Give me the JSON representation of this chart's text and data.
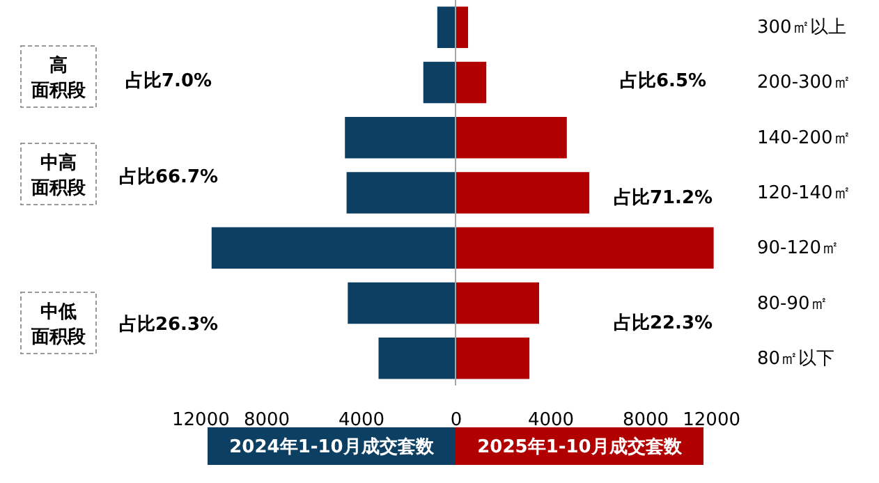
{
  "chart_data": {
    "type": "bar",
    "orientation": "horizontal",
    "categories": [
      "300㎡以上",
      "200-300㎡",
      "140-200㎡",
      "120-140㎡",
      "90-120㎡",
      "80-90㎡",
      "80㎡以下"
    ],
    "series": [
      {
        "name": "2024年1-10月成交套数",
        "color": "#0d3f62",
        "values": [
          -770,
          -1360,
          -4670,
          -4600,
          -10300,
          -4550,
          -3250
        ]
      },
      {
        "name": "2025年1-10月成交套数",
        "color": "#b00000",
        "values": [
          530,
          1300,
          4700,
          5650,
          10900,
          3530,
          3120
        ]
      }
    ],
    "xlim": [
      -12000,
      12000
    ],
    "xticks": [
      {
        "value": -12000,
        "label": "12000"
      },
      {
        "value": -8000,
        "label": "8000"
      },
      {
        "value": -4000,
        "label": "4000"
      },
      0,
      4000,
      8000,
      12000
    ],
    "ref_lines": [
      {
        "axis": "x",
        "value": 0,
        "color": "#a6a6a6"
      }
    ],
    "annotations": [
      "高面积段",
      "占比7.0%",
      "占比6.5%",
      "中高面积段",
      "占比66.7%",
      "占比71.2%",
      "中低面积段",
      "占比26.3%",
      "占比22.3%"
    ],
    "stacked": true,
    "legend": "bottom",
    "grid": false
  }
}
